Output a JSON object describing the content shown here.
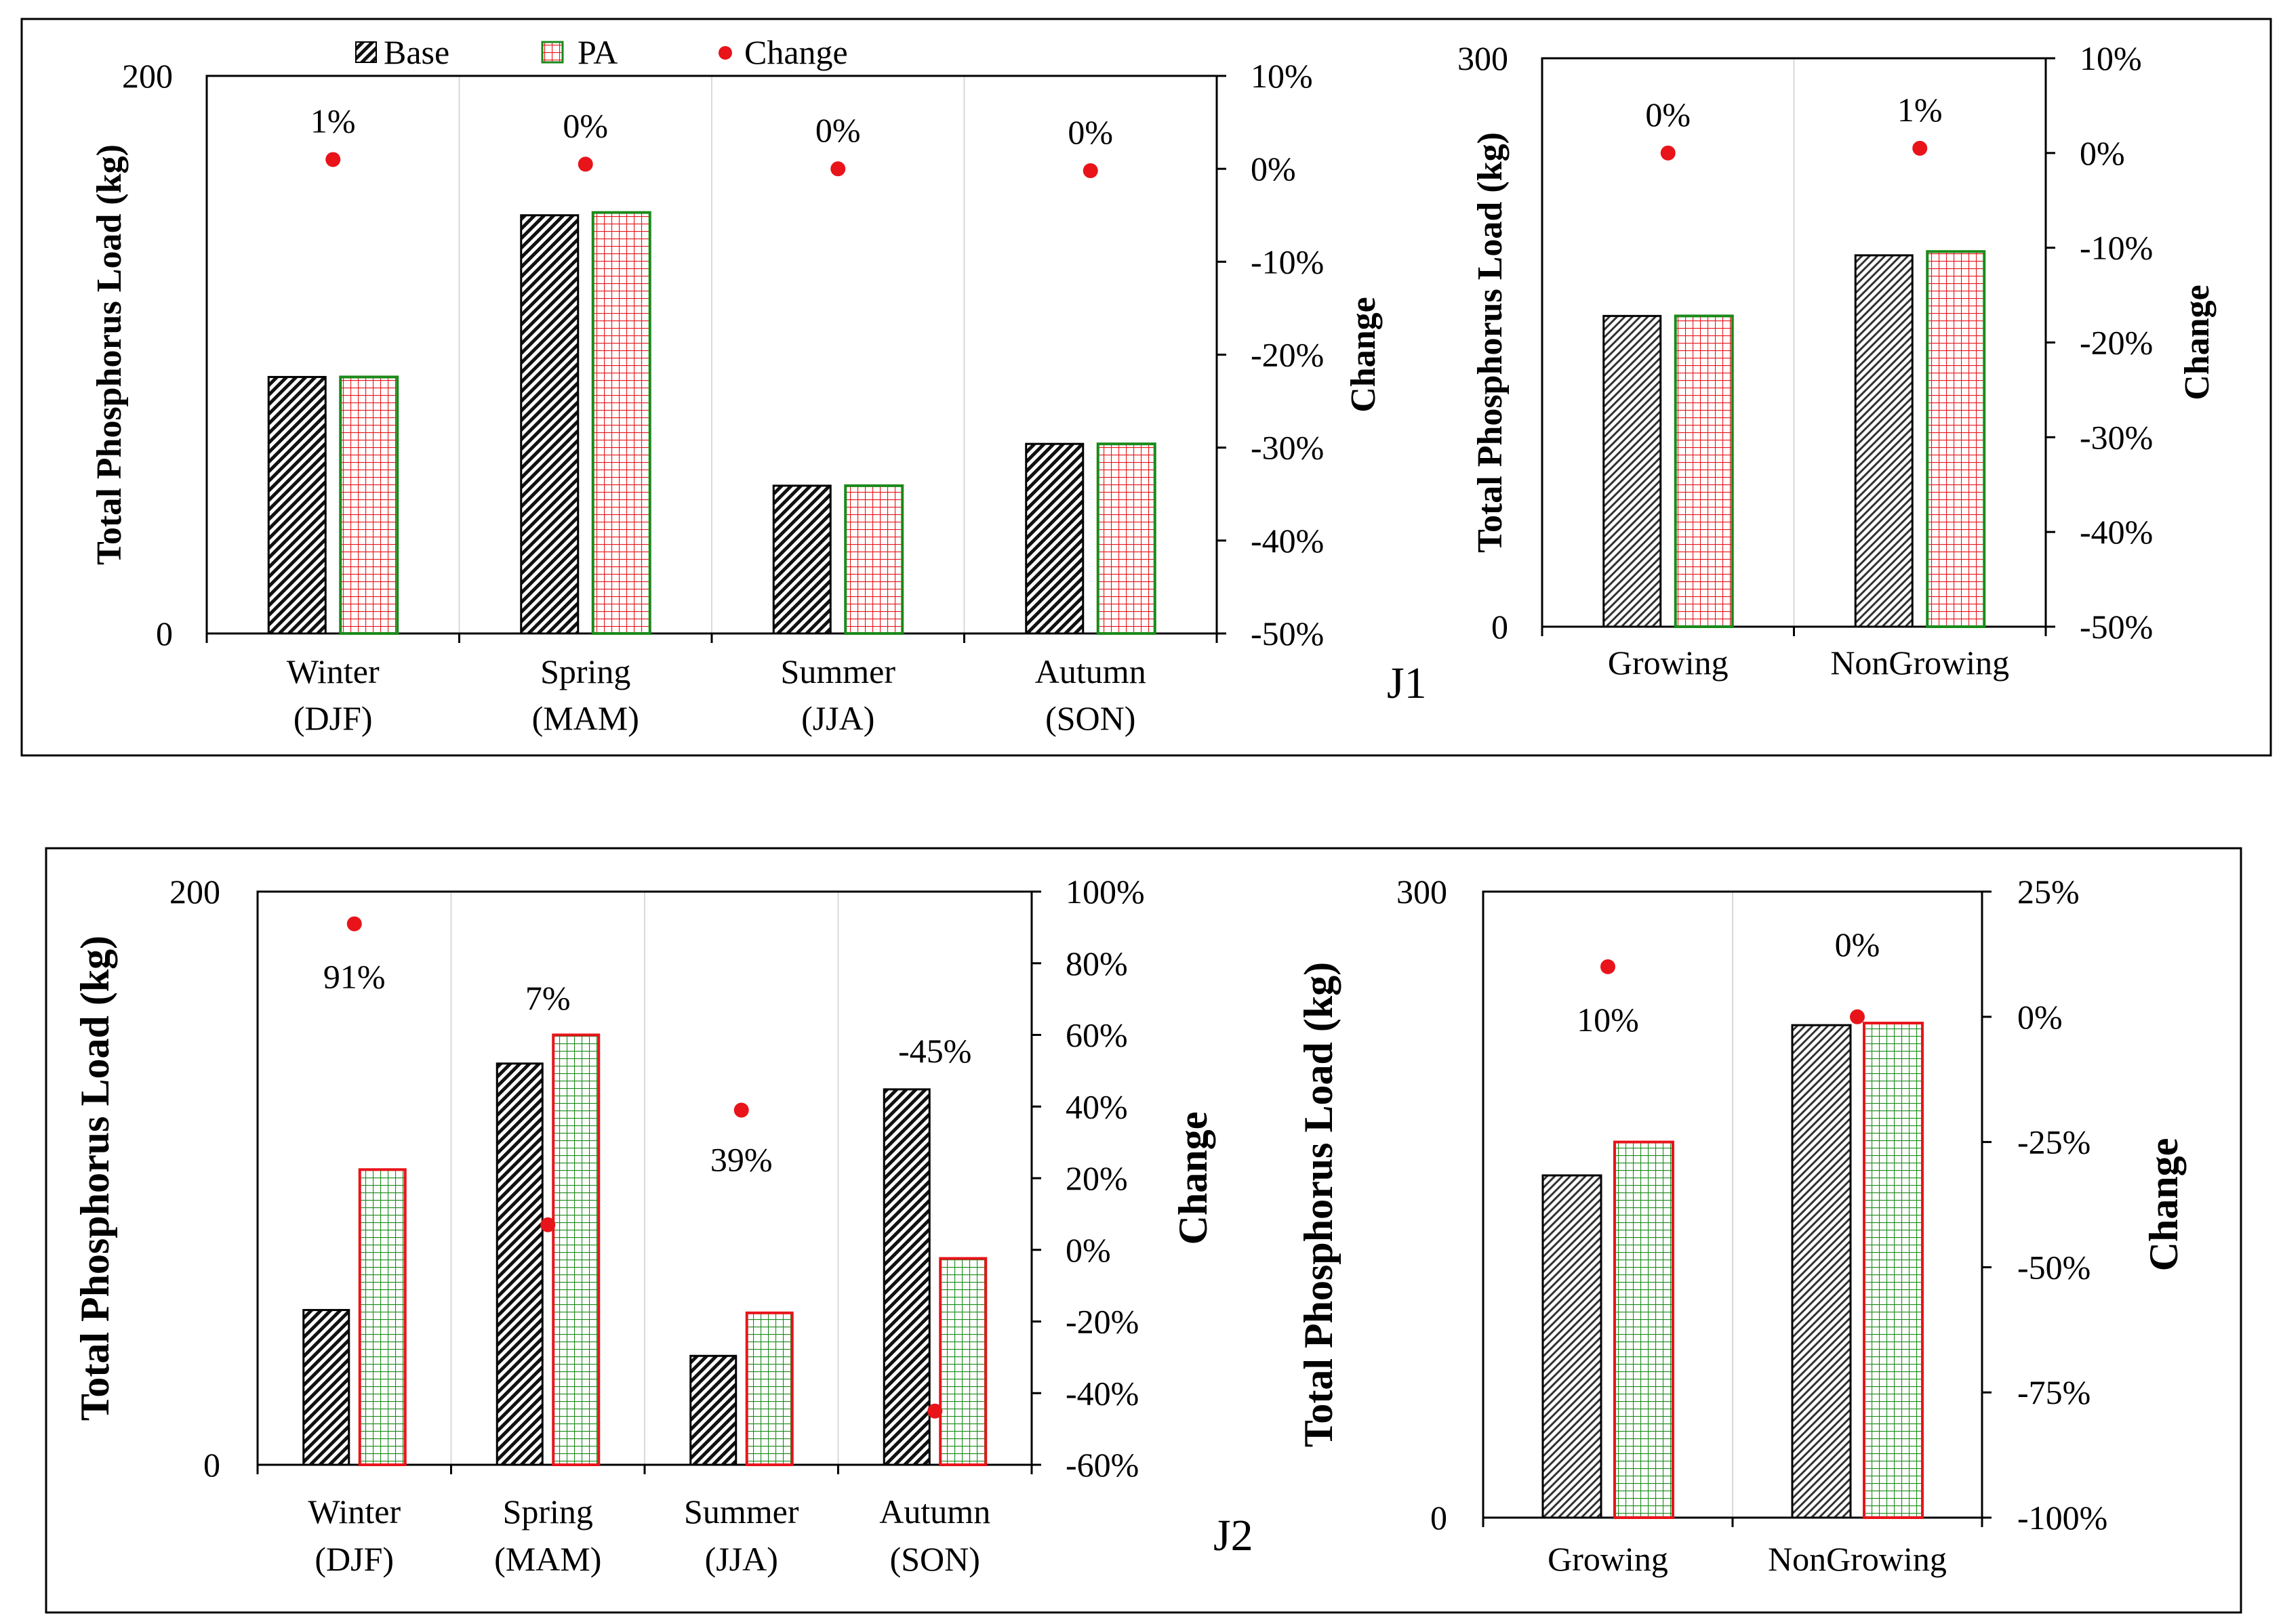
{
  "legend": {
    "base": "Base",
    "pa": "PA",
    "change": "Change"
  },
  "colors": {
    "change_dot": "#e8141a",
    "j1_pa_grid": "#e8141a",
    "j1_pa_border": "#1a8a1a",
    "j2_pa_grid": "#1a8a1a",
    "j2_pa_border": "#e8141a",
    "base_fill": "#111111"
  },
  "chart_data": [
    {
      "panel": "J1",
      "type": "bar",
      "title": "",
      "ylabel": "Total Phosphorus Load (kg)",
      "y2label": "Change",
      "ylim": [
        0,
        200
      ],
      "yticks": [
        "200",
        "0"
      ],
      "y2lim": [
        -50,
        10
      ],
      "y2ticks": [
        "10%",
        "0%",
        "-10%",
        "-20%",
        "-30%",
        "-40%",
        "-50%"
      ],
      "categories": [
        [
          "Winter",
          "(DJF)"
        ],
        [
          "Spring",
          "(MAM)"
        ],
        [
          "Summer",
          "(JJA)"
        ],
        [
          "Autumn",
          "(SON)"
        ]
      ],
      "series": [
        {
          "name": "Base",
          "values": [
            92,
            150,
            53,
            68
          ]
        },
        {
          "name": "PA",
          "values": [
            92,
            151,
            53,
            68
          ]
        }
      ],
      "change": {
        "values": [
          1,
          0.5,
          0,
          -0.2
        ],
        "labels": [
          "1%",
          "0%",
          "0%",
          "0%"
        ]
      }
    },
    {
      "panel": "J1-season",
      "type": "bar",
      "ylabel": "Total Phosphorus Load (kg)",
      "y2label": "Change",
      "ylim": [
        0,
        300
      ],
      "yticks": [
        "300",
        "0"
      ],
      "y2lim": [
        -50,
        10
      ],
      "y2ticks": [
        "10%",
        "0%",
        "-10%",
        "-20%",
        "-30%",
        "-40%",
        "-50%"
      ],
      "categories": [
        [
          "Growing"
        ],
        [
          "NonGrowing"
        ]
      ],
      "series": [
        {
          "name": "Base",
          "values": [
            164,
            196
          ]
        },
        {
          "name": "PA",
          "values": [
            164,
            198
          ]
        }
      ],
      "change": {
        "values": [
          0,
          0.5
        ],
        "labels": [
          "0%",
          "1%"
        ]
      }
    },
    {
      "panel": "J2",
      "type": "bar",
      "ylabel": "Total Phosphorus Load (kg)",
      "y2label": "Change",
      "ylim": [
        0,
        200
      ],
      "yticks": [
        "200",
        "0"
      ],
      "y2lim": [
        -60,
        100
      ],
      "y2ticks": [
        "100%",
        "80%",
        "60%",
        "40%",
        "20%",
        "0%",
        "-20%",
        "-40%",
        "-60%"
      ],
      "categories": [
        [
          "Winter",
          "(DJF)"
        ],
        [
          "Spring",
          "(MAM)"
        ],
        [
          "Summer",
          "(JJA)"
        ],
        [
          "Autumn",
          "(SON)"
        ]
      ],
      "series": [
        {
          "name": "Base",
          "values": [
            54,
            140,
            38,
            131
          ]
        },
        {
          "name": "PA",
          "values": [
            103,
            150,
            53,
            72
          ]
        }
      ],
      "change": {
        "values": [
          91,
          7,
          39,
          -45
        ],
        "labels": [
          "91%",
          "7%",
          "39%",
          "-45%"
        ]
      }
    },
    {
      "panel": "J2-season",
      "type": "bar",
      "ylabel": "Total Phosphorus Load (kg)",
      "y2label": "Change",
      "ylim": [
        0,
        300
      ],
      "yticks": [
        "300",
        "0"
      ],
      "y2lim": [
        -100,
        25
      ],
      "y2ticks": [
        "25%",
        "0%",
        "-25%",
        "-50%",
        "-75%",
        "-100%"
      ],
      "categories": [
        [
          "Growing"
        ],
        [
          "NonGrowing"
        ]
      ],
      "series": [
        {
          "name": "Base",
          "values": [
            164,
            236
          ]
        },
        {
          "name": "PA",
          "values": [
            180,
            237
          ]
        }
      ],
      "change": {
        "values": [
          10,
          0
        ],
        "labels": [
          "10%",
          "0%"
        ]
      }
    }
  ],
  "panel_labels": [
    "J1",
    "J2"
  ]
}
